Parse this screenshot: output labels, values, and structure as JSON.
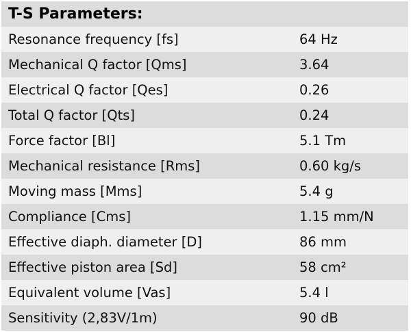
{
  "header": {
    "title": "T-S Parameters:"
  },
  "rows": [
    {
      "label": "Resonance frequency [fs]",
      "value": "64 Hz"
    },
    {
      "label": "Mechanical Q factor [Qms]",
      "value": "3.64"
    },
    {
      "label": "Electrical Q factor [Qes]",
      "value": "0.26"
    },
    {
      "label": "Total Q factor [Qts]",
      "value": "0.24"
    },
    {
      "label": "Force factor [Bl]",
      "value": "5.1 Tm"
    },
    {
      "label": "Mechanical resistance [Rms]",
      "value": "0.60 kg/s"
    },
    {
      "label": "Moving mass [Mms]",
      "value": "5.4 g"
    },
    {
      "label": "Compliance [Cms]",
      "value": "1.15 mm/N"
    },
    {
      "label": "Effective diaph. diameter [D]",
      "value": "86 mm"
    },
    {
      "label": "Effective piston area [Sd]",
      "value": "58 cm²"
    },
    {
      "label": "Equivalent volume [Vas]",
      "value": "5.4 l"
    },
    {
      "label": "Sensitivity (2,83V/1m)",
      "value": "90 dB"
    }
  ],
  "colors": {
    "header_bg": "#dcdcdc",
    "row_light": "#efefef",
    "row_dark": "#dcdcdc"
  }
}
